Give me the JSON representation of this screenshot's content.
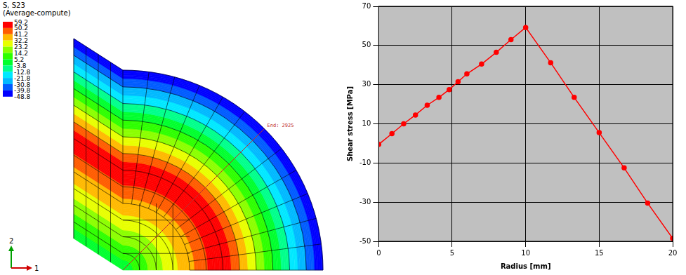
{
  "contour_plot": {
    "title": "S, S23",
    "subtitle": "(Average-compute)",
    "legend_values": [
      59.2,
      50.2,
      41.2,
      32.2,
      23.2,
      14.2,
      5.2,
      -3.8,
      -12.8,
      -21.8,
      -30.8,
      -39.8,
      -48.8
    ],
    "legend_colors": [
      "#ff0000",
      "#ff5c00",
      "#ffb900",
      "#e8ff00",
      "#8bff00",
      "#2eff00",
      "#00ff2e",
      "#00ff8b",
      "#00e8ff",
      "#00b9ff",
      "#005cff",
      "#0000ff"
    ],
    "path_label": "End: 2925",
    "triad": {
      "x": "1",
      "y": "2"
    }
  },
  "chart_data": {
    "type": "line",
    "x": [
      0,
      0.9,
      1.7,
      2.5,
      3.3,
      4.1,
      4.8,
      5.4,
      6,
      7,
      8,
      9,
      10,
      11.7,
      13.3,
      15,
      16.7,
      18.3,
      20
    ],
    "values": [
      -0.5,
      5,
      10,
      14.5,
      19.5,
      23.5,
      27.5,
      31.5,
      35.5,
      40.5,
      46.5,
      53,
      59.2,
      41.2,
      23.5,
      5.5,
      -12.5,
      -30.5,
      -48.5
    ],
    "color": "#ff0000",
    "marker": "circle",
    "xlabel": "Radius [mm]",
    "ylabel": "Shear stress [MPa]",
    "xlim": [
      0,
      20
    ],
    "xticks": [
      0,
      5,
      10,
      15,
      20
    ],
    "ylim": [
      -50,
      70
    ],
    "yticks": [
      -50,
      -30,
      -10,
      10,
      30,
      50,
      70
    ],
    "grid": true
  }
}
